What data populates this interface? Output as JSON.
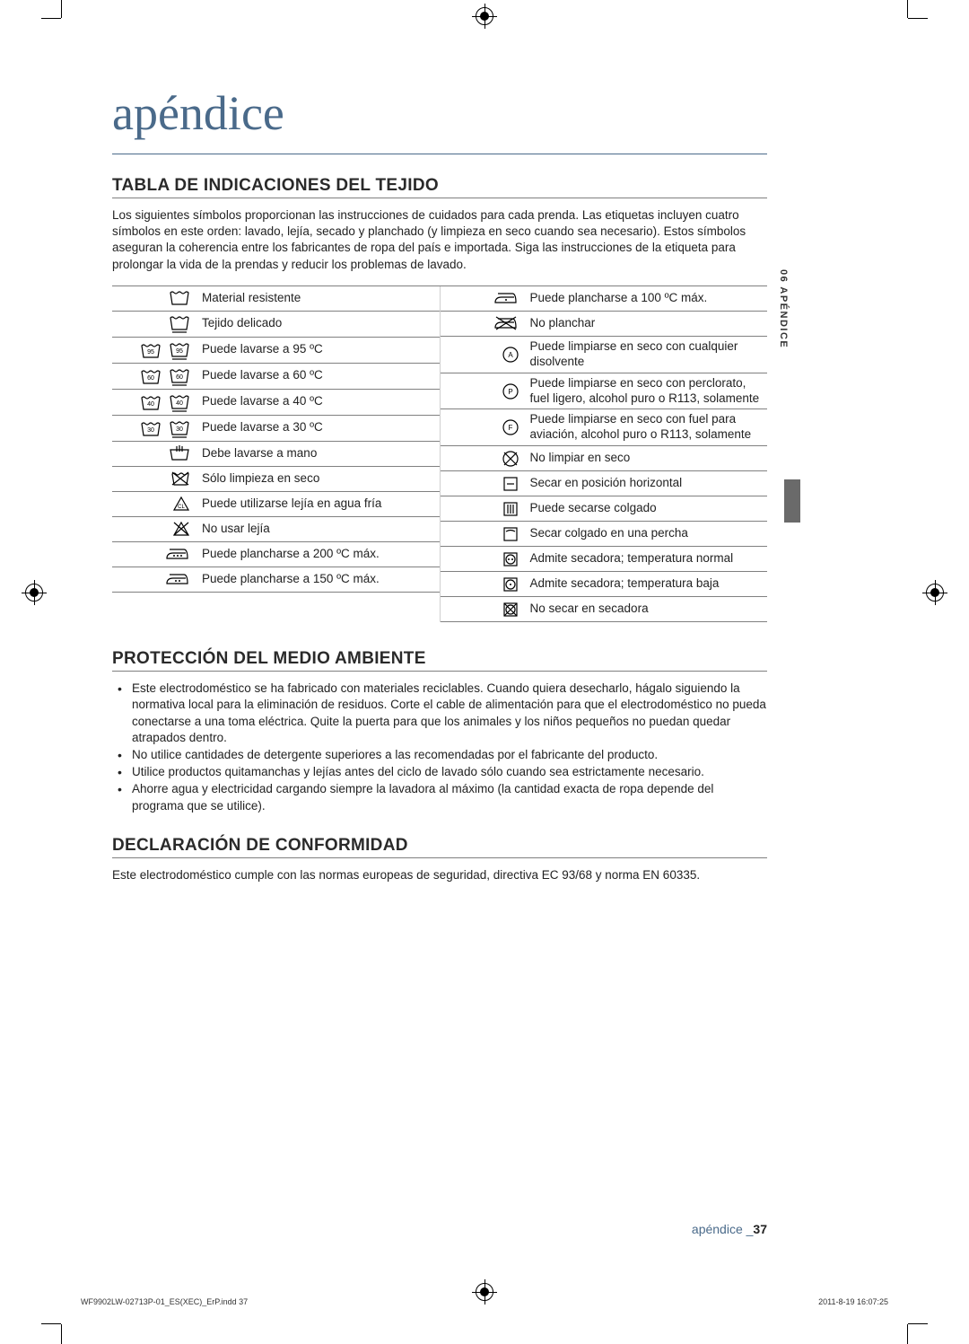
{
  "title": "apéndice",
  "side_tab": "06 APÉNDICE",
  "section1": {
    "heading": "TABLA DE INDICACIONES DEL TEJIDO",
    "intro": "Los siguientes símbolos proporcionan las instrucciones de cuidados para cada prenda. Las etiquetas incluyen cuatro símbolos en este orden: lavado, lejía, secado y planchado (y limpieza en seco cuando sea necesario).  Estos símbolos aseguran la coherencia entre los fabricantes de ropa del país e importada.  Siga las instrucciones de la etiqueta para prolongar la vida de la prendas y reducir los problemas de lavado."
  },
  "fabric_left": [
    {
      "icon": "wash-basin",
      "text": "Material resistente"
    },
    {
      "icon": "wash-basin-delicate",
      "text": "Tejido delicado"
    },
    {
      "icon": "wash-95",
      "text": "Puede lavarse a 95 ºC"
    },
    {
      "icon": "wash-60",
      "text": "Puede lavarse a 60 ºC"
    },
    {
      "icon": "wash-40",
      "text": "Puede lavarse a 40 ºC"
    },
    {
      "icon": "wash-30",
      "text": "Puede lavarse a 30 ºC"
    },
    {
      "icon": "hand-wash",
      "text": "Debe lavarse a mano"
    },
    {
      "icon": "dry-clean-only",
      "text": "Sólo limpieza en seco"
    },
    {
      "icon": "bleach",
      "text": "Puede utilizarse lejía en agua fría"
    },
    {
      "icon": "no-bleach",
      "text": "No usar lejía"
    },
    {
      "icon": "iron-high",
      "text": "Puede plancharse a 200 ºC máx."
    },
    {
      "icon": "iron-med",
      "text": "Puede plancharse a 150 ºC máx."
    }
  ],
  "fabric_right": [
    {
      "icon": "iron-low",
      "text": "Puede plancharse a 100 ºC máx."
    },
    {
      "icon": "no-iron",
      "text": "No planchar"
    },
    {
      "icon": "dryclean-a",
      "text": "Puede limpiarse en seco con cualquier disolvente"
    },
    {
      "icon": "dryclean-p",
      "text": "Puede limpiarse en seco con perclorato, fuel ligero, alcohol puro o R113, solamente"
    },
    {
      "icon": "dryclean-f",
      "text": "Puede limpiarse en seco con fuel para aviación, alcohol puro o R113, solamente"
    },
    {
      "icon": "no-dryclean",
      "text": "No limpiar en seco"
    },
    {
      "icon": "dry-flat",
      "text": "Secar en posición horizontal"
    },
    {
      "icon": "drip-dry",
      "text": "Puede secarse colgado"
    },
    {
      "icon": "hang-dry",
      "text": "Secar colgado en una percha"
    },
    {
      "icon": "tumble-normal",
      "text": "Admite secadora; temperatura normal"
    },
    {
      "icon": "tumble-low",
      "text": "Admite secadora; temperatura baja"
    },
    {
      "icon": "no-tumble",
      "text": "No secar en secadora"
    }
  ],
  "section2": {
    "heading": "PROTECCIÓN DEL MEDIO AMBIENTE",
    "bullets": [
      "Este electrodoméstico se ha fabricado con materiales reciclables. Cuando quiera desecharlo, hágalo siguiendo la normativa local para la eliminación de residuos. Corte el cable de alimentación para que el electrodoméstico no pueda conectarse a una toma eléctrica. Quite la puerta para que los animales y los niños pequeños no puedan quedar atrapados dentro.",
      "No utilice cantidades de detergente superiores a las recomendadas por el fabricante del producto.",
      "Utilice productos quitamanchas y lejías antes del ciclo de lavado sólo cuando sea estrictamente necesario.",
      "Ahorre agua y electricidad cargando siempre la lavadora al máximo (la cantidad exacta de ropa depende del programa que se utilice)."
    ]
  },
  "section3": {
    "heading": "DECLARACIÓN DE CONFORMIDAD",
    "text": "Este electrodoméstico cumple con las normas europeas de seguridad, directiva EC 93/68 y norma EN 60335."
  },
  "footer": {
    "section": "apéndice _",
    "pagenum": "37",
    "doc": "WF9902LW-02713P-01_ES(XEC)_ErP.indd   37",
    "date": "2011-8-19   16:07:25"
  },
  "colors": {
    "accent": "#4a6a8a",
    "text": "#222222",
    "rule": "#808080"
  }
}
